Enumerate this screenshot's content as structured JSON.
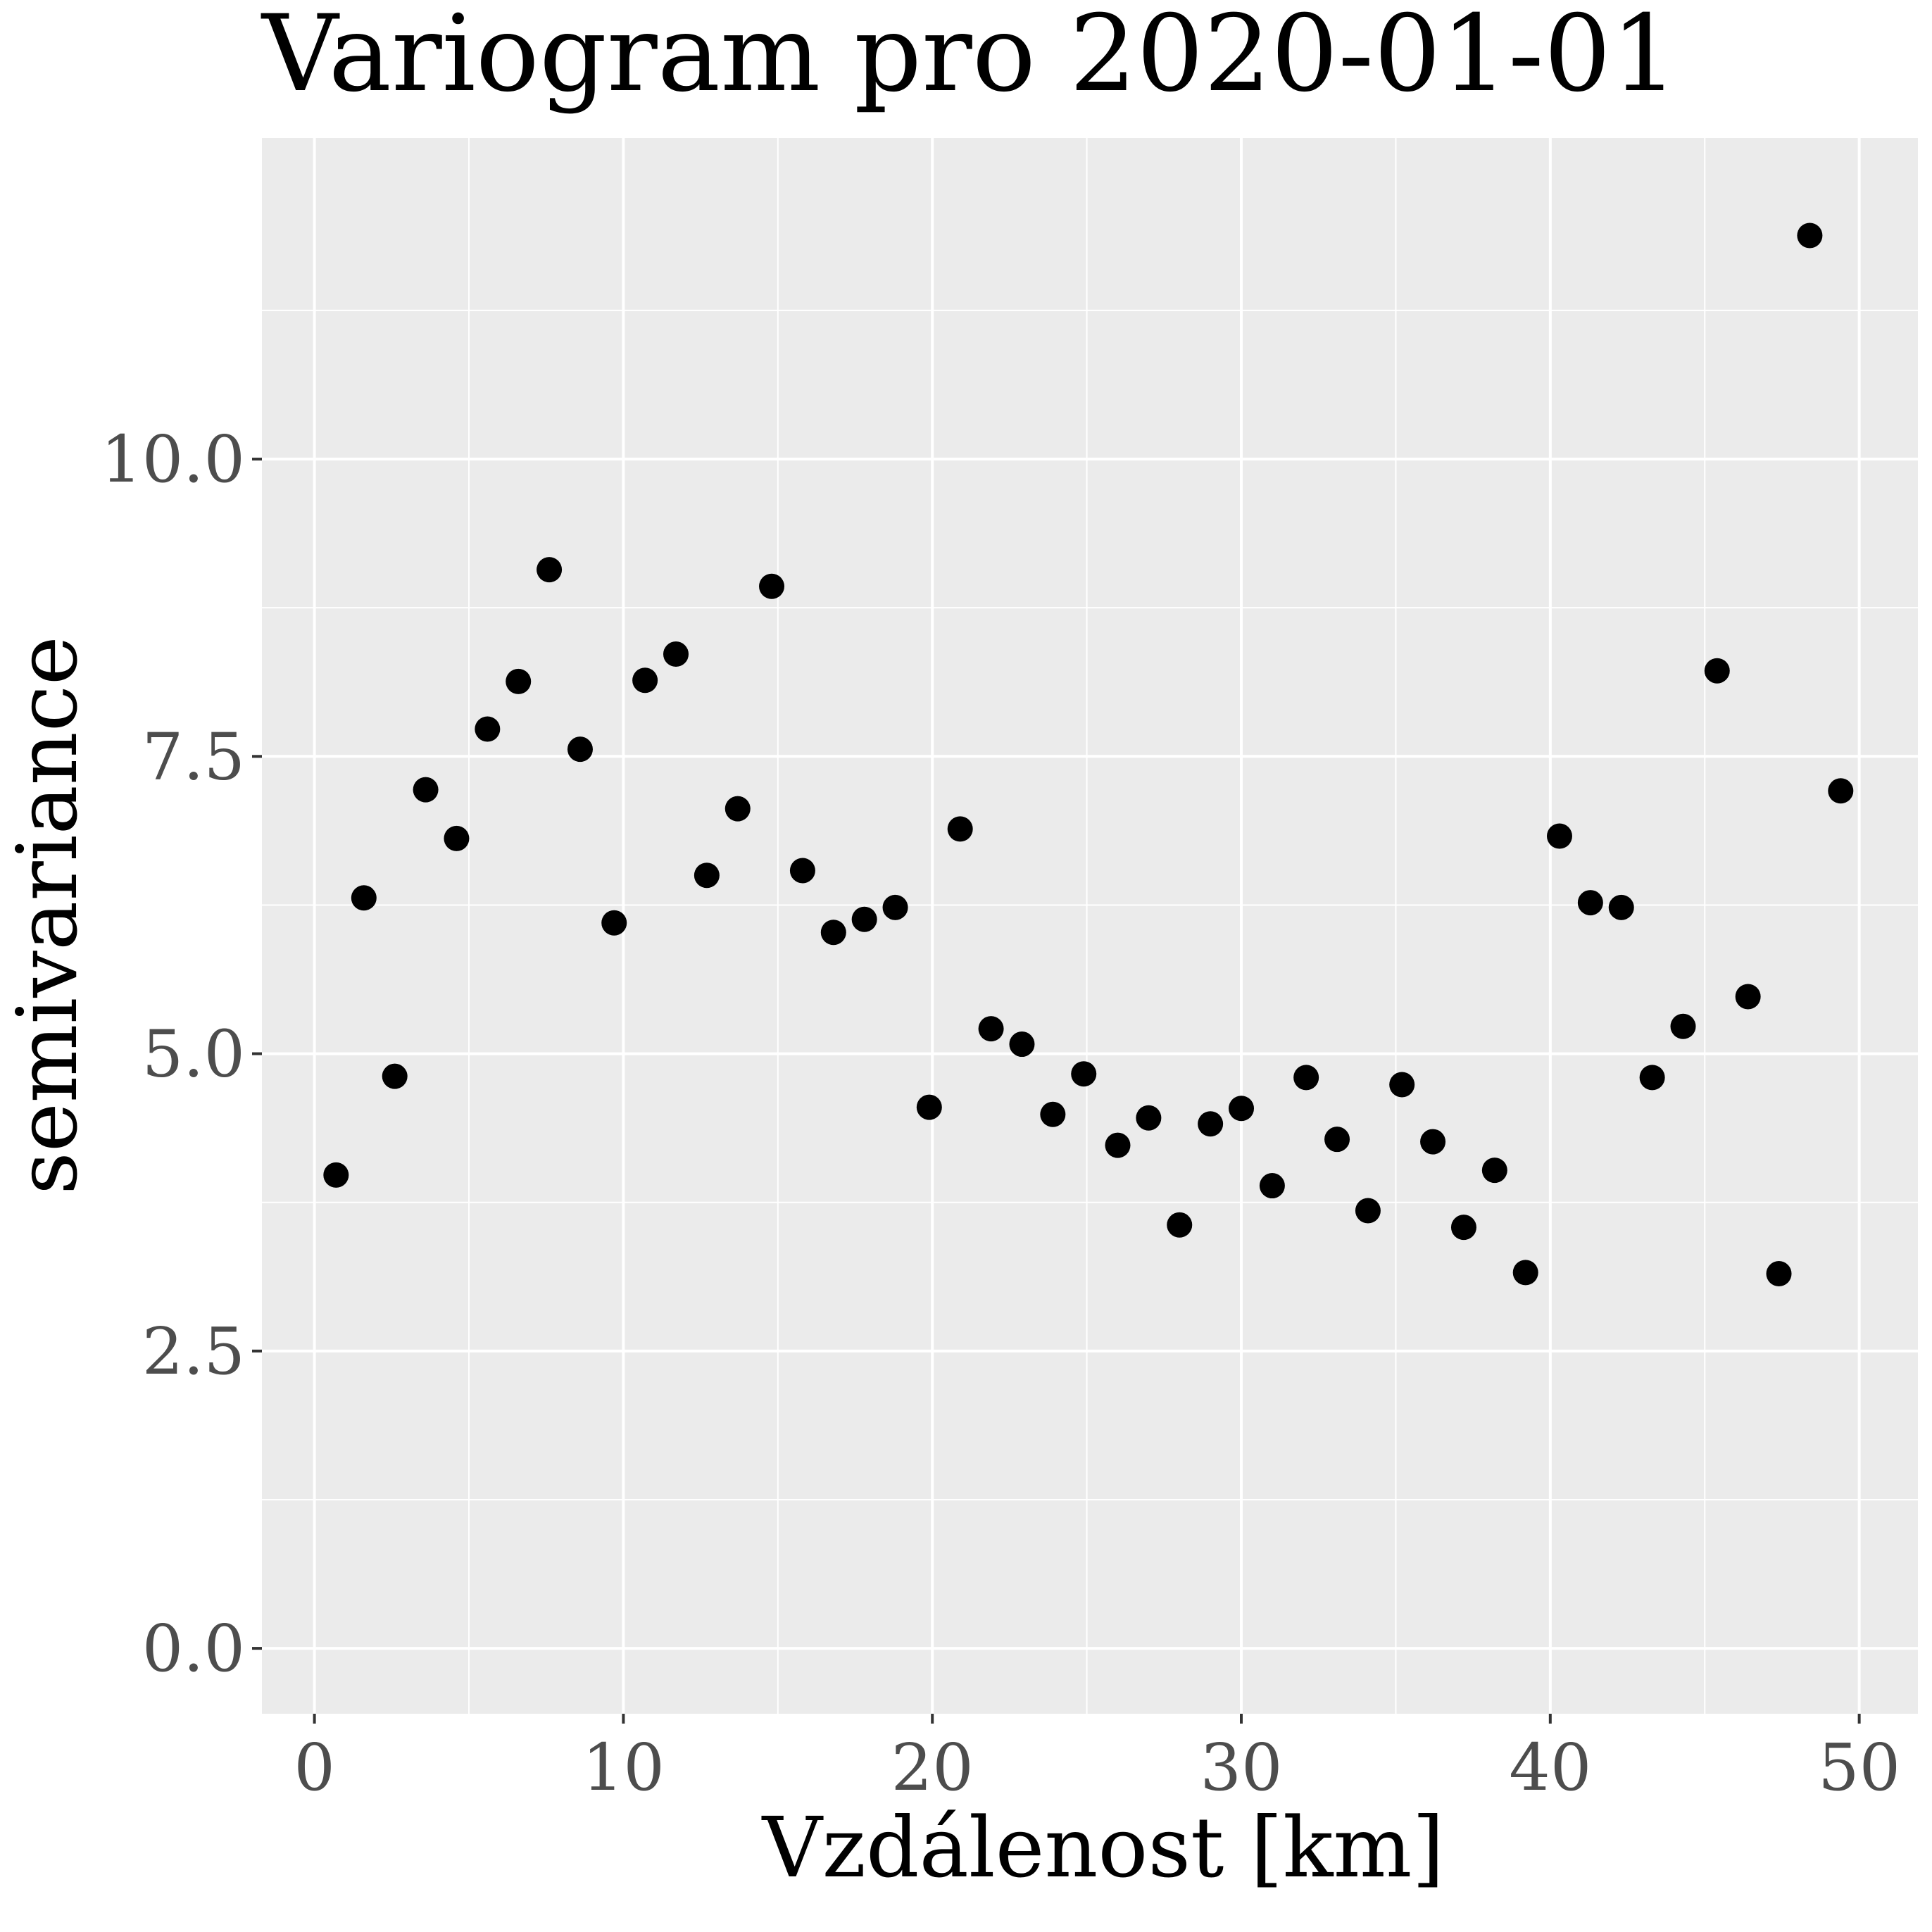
{
  "chart_data": {
    "type": "scatter",
    "title": "Variogram pro 2020-01-01",
    "xlabel": "Vzdálenost [km]",
    "ylabel": "semivariance",
    "xlim": [
      -1.7,
      51.9
    ],
    "ylim": [
      -0.55,
      12.7
    ],
    "x_ticks": [
      0,
      10,
      20,
      30,
      40,
      50
    ],
    "x_tick_labels": [
      "0",
      "10",
      "20",
      "30",
      "40",
      "50"
    ],
    "x_minor_ticks": [
      5,
      15,
      25,
      35,
      45
    ],
    "y_ticks": [
      0,
      2.5,
      5,
      7.5,
      10
    ],
    "y_tick_labels": [
      "0.0",
      "2.5",
      "5.0",
      "7.5",
      "10.0"
    ],
    "y_minor_ticks": [
      1.25,
      3.75,
      6.25,
      8.75,
      11.25
    ],
    "grid": true,
    "colors": {
      "panel_background": "#ebebeb",
      "grid_line": "#ffffff",
      "point": "#000000",
      "tick_label": "#4d4d4d"
    },
    "series": [
      {
        "x": [
          0.7,
          1.6,
          2.6,
          3.6,
          4.6,
          5.6,
          6.6,
          7.6,
          8.6,
          9.7,
          10.7,
          11.7,
          12.7,
          13.7,
          14.8,
          15.8,
          16.8,
          17.8,
          18.8,
          19.9,
          20.9,
          21.9,
          22.9,
          23.9,
          24.9,
          26.0,
          27.0,
          28.0,
          29.0,
          30.0,
          31.0,
          32.1,
          33.1,
          34.1,
          35.2,
          36.2,
          37.2,
          38.2,
          39.2,
          40.3,
          41.3,
          42.3,
          43.3,
          44.3,
          45.4,
          46.4,
          47.4,
          48.4,
          49.4
        ],
        "y": [
          3.98,
          6.31,
          4.81,
          7.22,
          6.81,
          7.73,
          8.13,
          9.07,
          7.56,
          6.1,
          8.14,
          8.36,
          6.5,
          7.06,
          8.93,
          6.54,
          6.02,
          6.13,
          6.23,
          4.55,
          6.89,
          5.21,
          5.08,
          4.49,
          4.83,
          4.23,
          4.46,
          3.56,
          4.41,
          4.54,
          3.89,
          4.8,
          4.28,
          3.68,
          4.74,
          4.26,
          3.54,
          4.02,
          3.16,
          6.83,
          6.27,
          6.23,
          4.8,
          5.23,
          8.22,
          5.48,
          3.15,
          11.88,
          7.21
        ]
      }
    ]
  }
}
